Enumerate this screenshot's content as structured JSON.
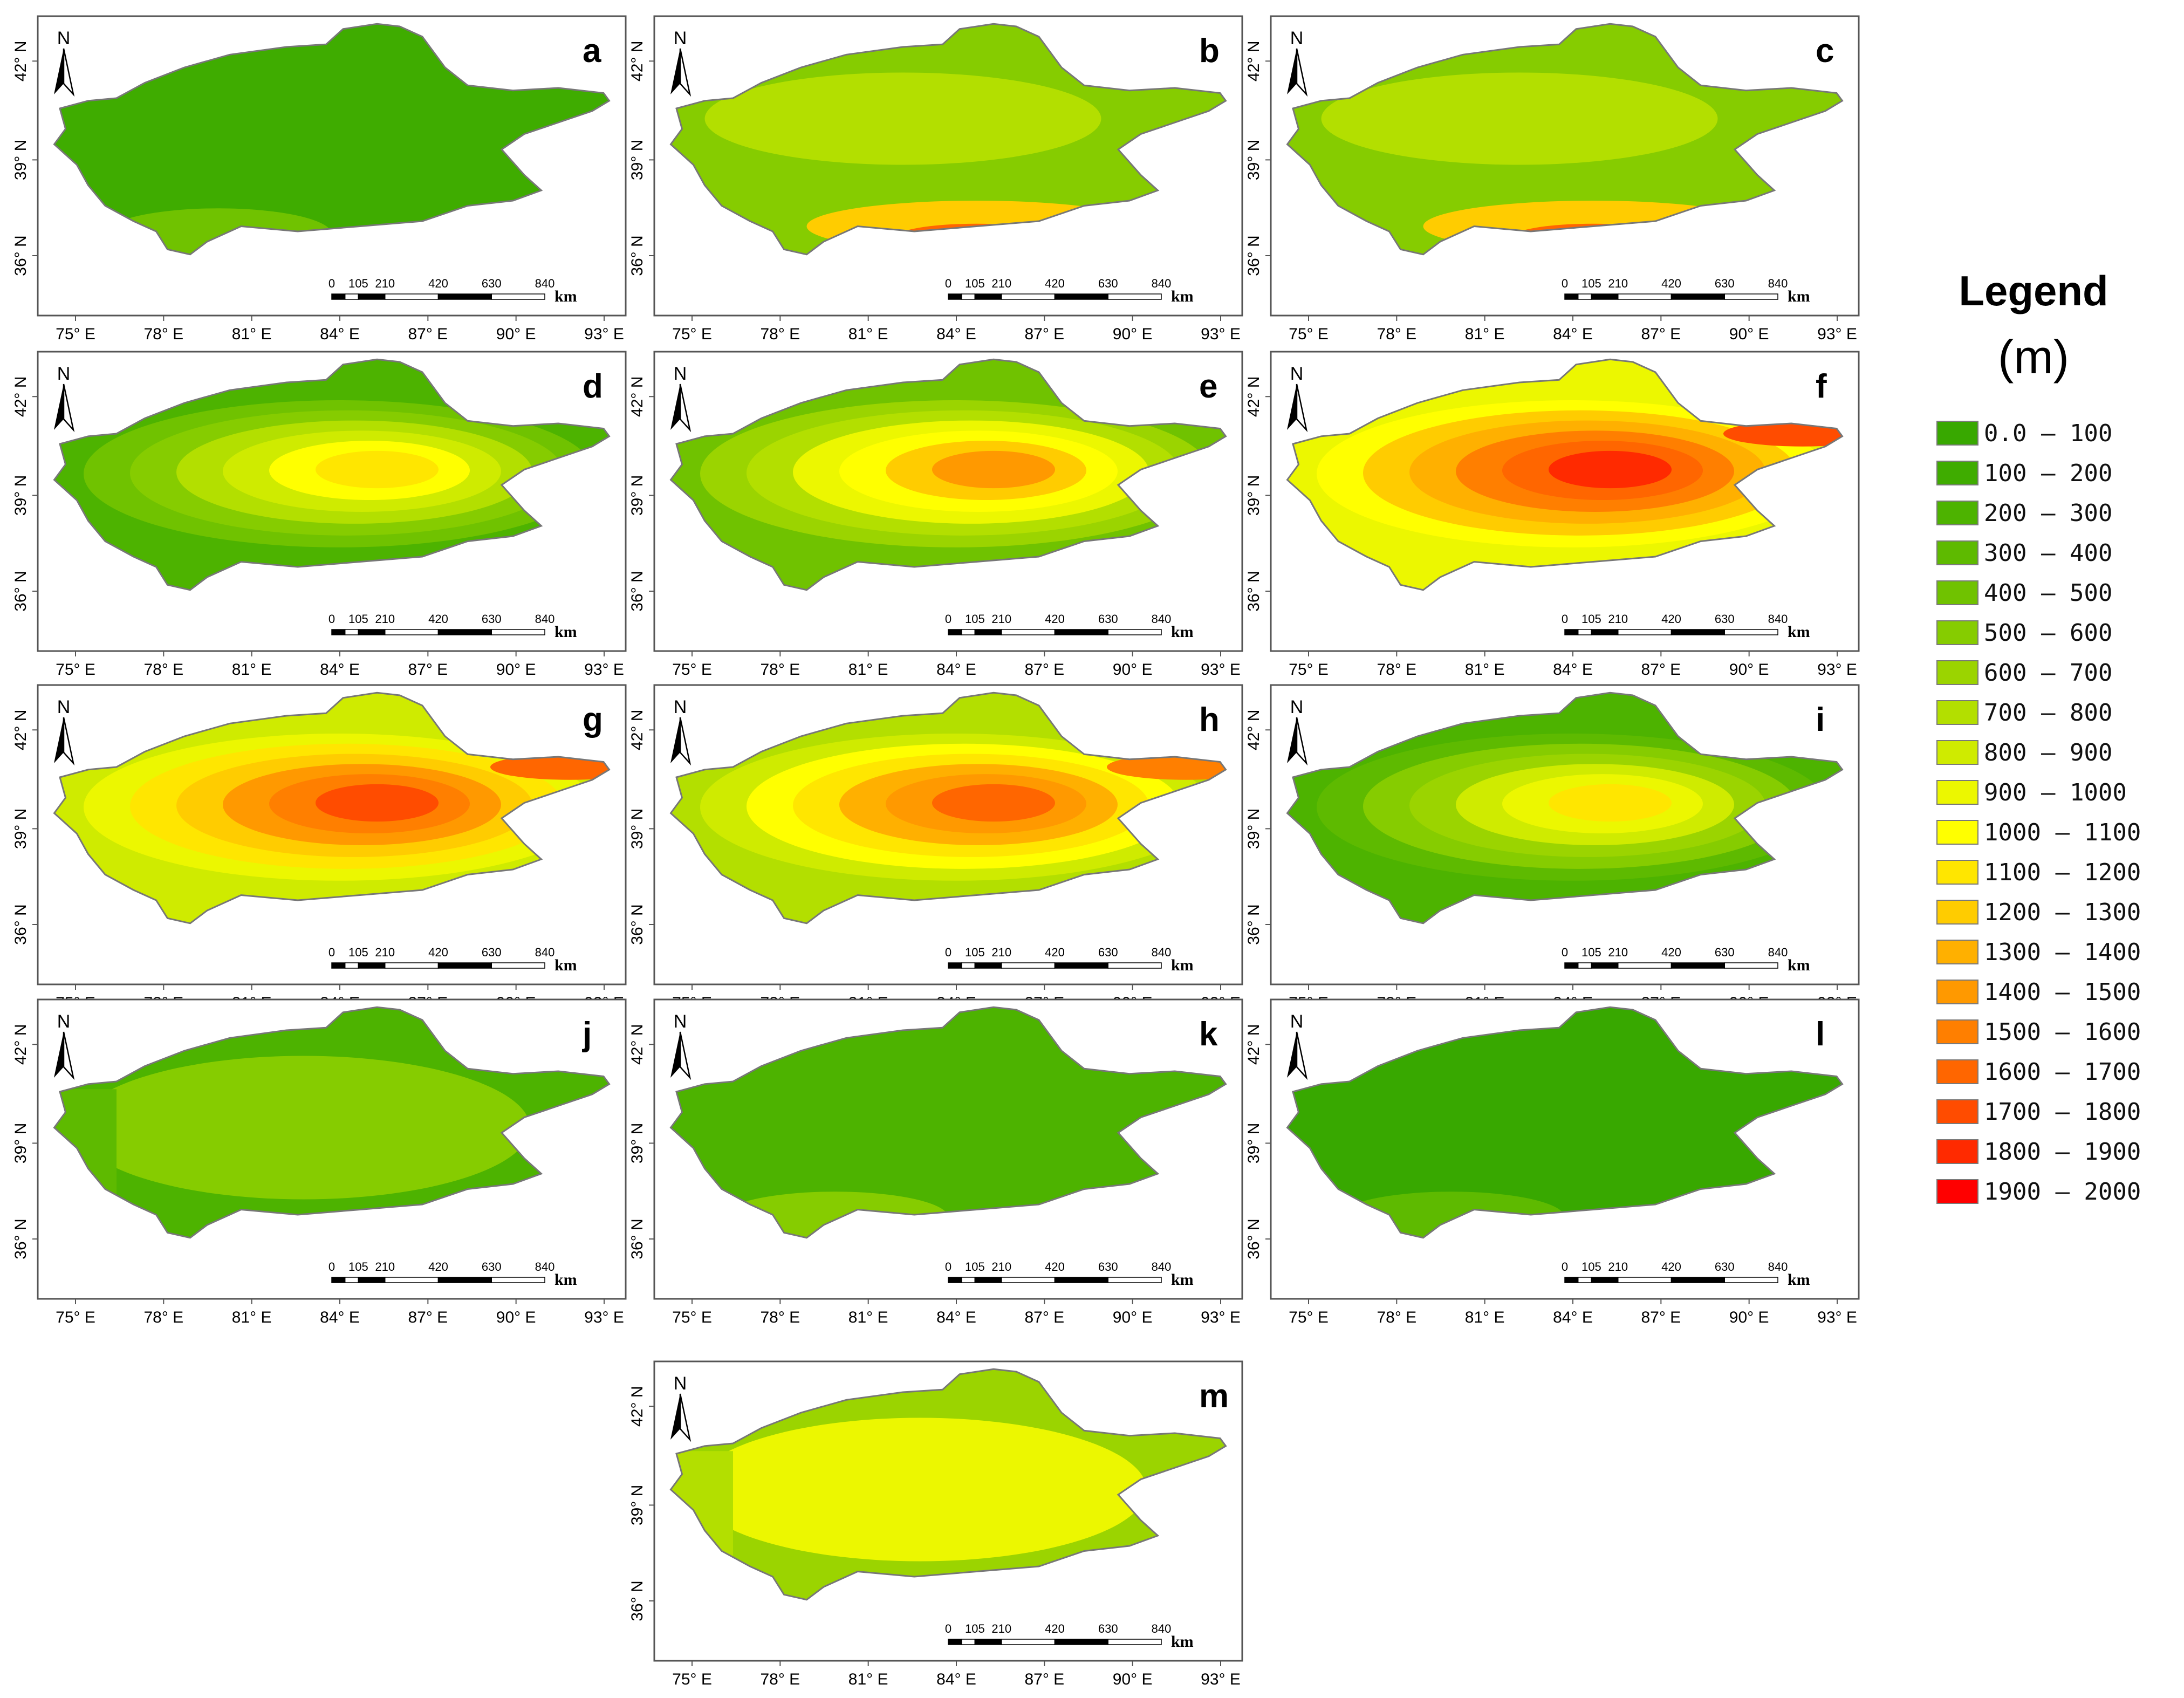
{
  "figure": {
    "lon_ticks": [
      "75° E",
      "78° E",
      "81° E",
      "84° E",
      "87° E",
      "90° E",
      "93° E"
    ],
    "lat_ticks": [
      "42° N",
      "39° N",
      "36° N"
    ],
    "north_label": "N",
    "scale_ticks": [
      "0",
      "105",
      "210",
      "420",
      "630",
      "840"
    ],
    "scale_unit": "km",
    "panels": [
      {
        "label": "a",
        "level": 0.05,
        "pattern": "low"
      },
      {
        "label": "b",
        "level": 0.38,
        "pattern": "south"
      },
      {
        "label": "c",
        "level": 0.36,
        "pattern": "south"
      },
      {
        "label": "d",
        "level": 0.58,
        "pattern": "center"
      },
      {
        "label": "e",
        "level": 0.7,
        "pattern": "center"
      },
      {
        "label": "f",
        "level": 0.9,
        "pattern": "center"
      },
      {
        "label": "g",
        "level": 0.86,
        "pattern": "center"
      },
      {
        "label": "h",
        "level": 0.8,
        "pattern": "center"
      },
      {
        "label": "i",
        "level": 0.55,
        "pattern": "center"
      },
      {
        "label": "j",
        "level": 0.26,
        "pattern": "uniform"
      },
      {
        "label": "k",
        "level": 0.12,
        "pattern": "low"
      },
      {
        "label": "l",
        "level": 0.04,
        "pattern": "low"
      },
      {
        "label": "m",
        "level": 0.46,
        "pattern": "uniform"
      }
    ]
  },
  "legend": {
    "title": "Legend",
    "unit": "(m)",
    "items": [
      {
        "label": "0.0 — 100",
        "color": "#38a800"
      },
      {
        "label": "100 — 200",
        "color": "#3fac00"
      },
      {
        "label": "200 — 300",
        "color": "#4db300"
      },
      {
        "label": "300 — 400",
        "color": "#5eba00"
      },
      {
        "label": "400 — 500",
        "color": "#70c200"
      },
      {
        "label": "500 — 600",
        "color": "#86cc00"
      },
      {
        "label": "600 — 700",
        "color": "#9bd400"
      },
      {
        "label": "700 — 800",
        "color": "#b3df00"
      },
      {
        "label": "800 — 900",
        "color": "#cfeb00"
      },
      {
        "label": "900 — 1000",
        "color": "#ecf700"
      },
      {
        "label": "1000 — 1100",
        "color": "#ffff00"
      },
      {
        "label": "1100 — 1200",
        "color": "#ffe600"
      },
      {
        "label": "1200 — 1300",
        "color": "#ffcc00"
      },
      {
        "label": "1300 — 1400",
        "color": "#ffb000"
      },
      {
        "label": "1400 — 1500",
        "color": "#ff9900"
      },
      {
        "label": "1500 — 1600",
        "color": "#ff7f00"
      },
      {
        "label": "1600 — 1700",
        "color": "#ff6600"
      },
      {
        "label": "1700 — 1800",
        "color": "#ff4c00"
      },
      {
        "label": "1800 — 1900",
        "color": "#ff2a00"
      },
      {
        "label": "1900 — 2000",
        "color": "#ff0000"
      }
    ]
  }
}
